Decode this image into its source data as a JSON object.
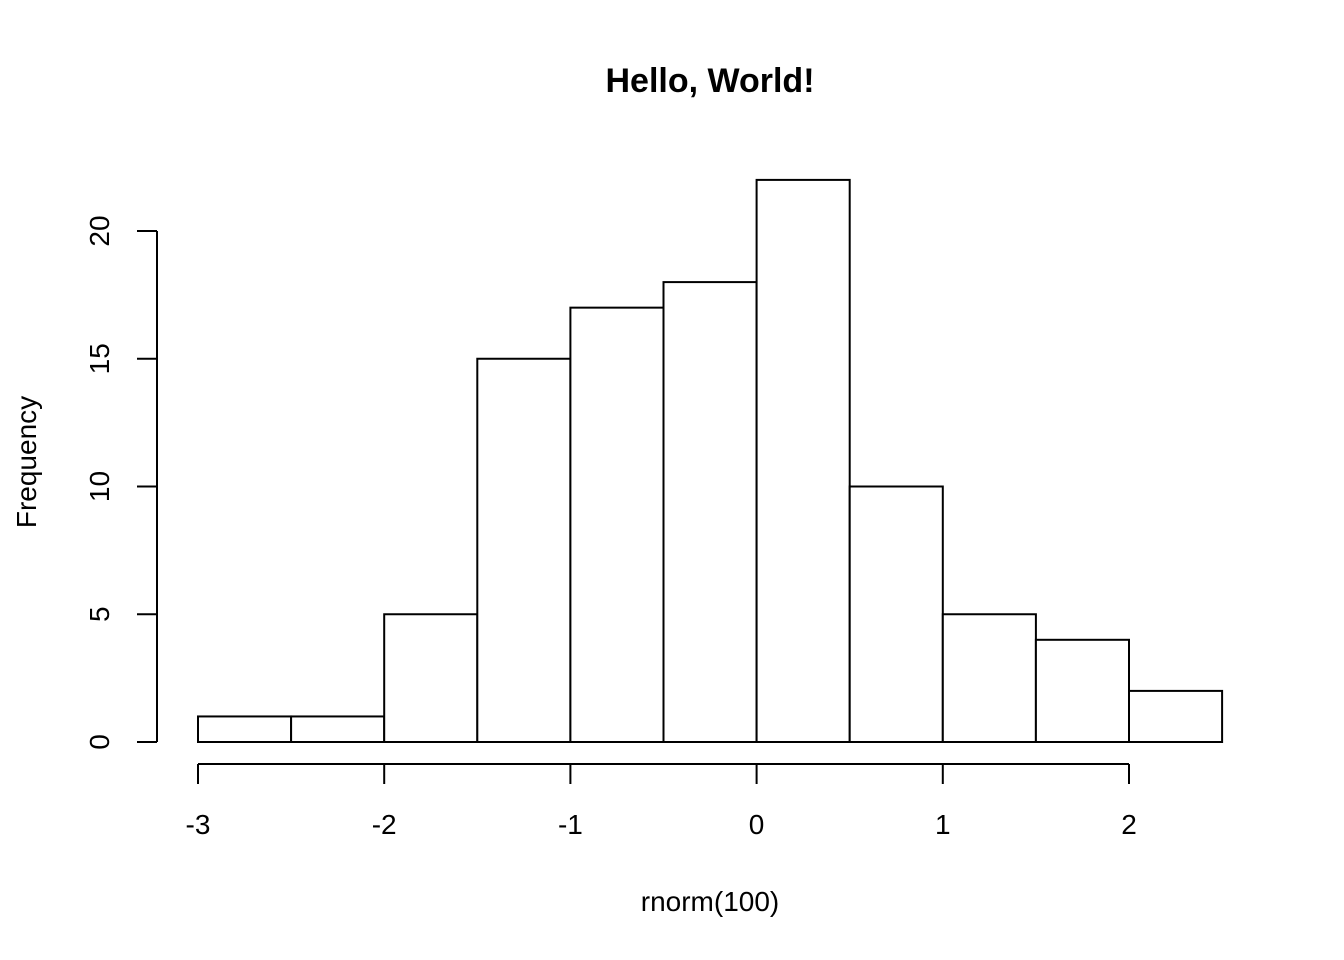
{
  "chart_data": {
    "type": "bar",
    "title": "Hello, World!",
    "xlabel": "rnorm(100)",
    "ylabel": "Frequency",
    "bins": [
      {
        "from": -3.0,
        "to": -2.5,
        "count": 1
      },
      {
        "from": -2.5,
        "to": -2.0,
        "count": 1
      },
      {
        "from": -2.0,
        "to": -1.5,
        "count": 5
      },
      {
        "from": -1.5,
        "to": -1.0,
        "count": 15
      },
      {
        "from": -1.0,
        "to": -0.5,
        "count": 17
      },
      {
        "from": -0.5,
        "to": 0.0,
        "count": 18
      },
      {
        "from": 0.0,
        "to": 0.5,
        "count": 22
      },
      {
        "from": 0.5,
        "to": 1.0,
        "count": 10
      },
      {
        "from": 1.0,
        "to": 1.5,
        "count": 5
      },
      {
        "from": 1.5,
        "to": 2.0,
        "count": 4
      },
      {
        "from": 2.0,
        "to": 2.5,
        "count": 2
      }
    ],
    "x_ticks": [
      -3,
      -2,
      -1,
      0,
      1,
      2
    ],
    "x_tick_labels": [
      "-3",
      "-2",
      "-1",
      "0",
      "1",
      "2"
    ],
    "y_ticks": [
      0,
      5,
      10,
      15,
      20
    ],
    "y_tick_labels": [
      "0",
      "5",
      "10",
      "15",
      "20"
    ],
    "grid": false,
    "colors": {
      "bar_fill": "#ffffff",
      "bar_stroke": "#000000"
    }
  }
}
